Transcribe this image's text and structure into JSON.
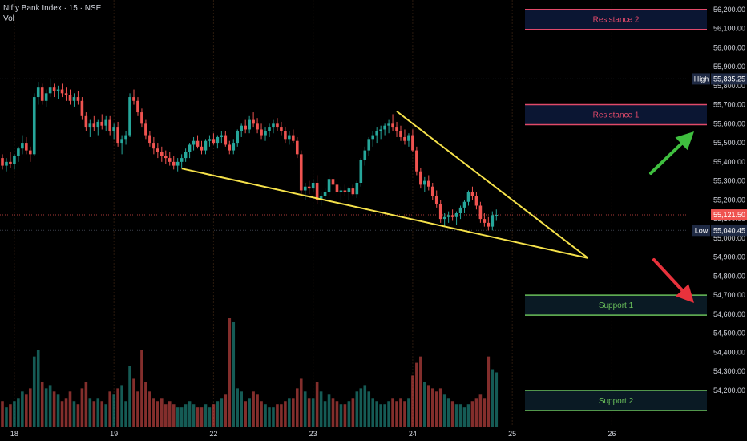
{
  "legend": {
    "symbol": "Nifty Bank Index · 15 · NSE",
    "volume_label": "Vol"
  },
  "colors": {
    "background": "#000000",
    "up": "#26a69a",
    "down": "#ef5350",
    "resistance_border": "#e04a6a",
    "resistance_fill": "#0b1633",
    "support_border": "#6abf5a",
    "support_fill": "#0a1a24",
    "trendline": "#f5e14a",
    "arrow_up": "#3fbf3f",
    "arrow_down": "#e8323c",
    "label_bg": "#1f2a44",
    "current_price_bg": "#ef5350"
  },
  "chart_data": {
    "type": "candlestick",
    "ylim": [
      54120,
      56220
    ],
    "x_ticks": [
      {
        "label": "18",
        "t": 3
      },
      {
        "label": "19",
        "t": 28
      },
      {
        "label": "22",
        "t": 53
      },
      {
        "label": "23",
        "t": 78
      },
      {
        "label": "24",
        "t": 103
      },
      {
        "label": "25",
        "t": 128
      },
      {
        "label": "26",
        "t": 153
      }
    ],
    "y_ticks": [
      54200,
      54300,
      54400,
      54500,
      54600,
      54700,
      54800,
      54900,
      55000,
      55100,
      55200,
      55300,
      55400,
      55500,
      55600,
      55700,
      55800,
      55900,
      56000,
      56100,
      56200
    ],
    "high": {
      "label": "High",
      "value": 55835.25
    },
    "low": {
      "label": "Low",
      "value": 55040.45
    },
    "current": {
      "value": 55121.5
    },
    "zones": [
      {
        "name": "Resistance 2",
        "top": 56200,
        "bottom": 56095,
        "kind": "resistance"
      },
      {
        "name": "Resistance 1",
        "top": 55700,
        "bottom": 55595,
        "kind": "resistance"
      },
      {
        "name": "Support 1",
        "top": 54700,
        "bottom": 54595,
        "kind": "support"
      },
      {
        "name": "Support 2",
        "top": 54200,
        "bottom": 54095,
        "kind": "support"
      }
    ],
    "trendlines": [
      {
        "t1": 45,
        "v1": 55365,
        "t2": 147,
        "v2": 54895
      },
      {
        "t1": 99,
        "v1": 55665,
        "t2": 147,
        "v2": 54895
      }
    ],
    "candles": [
      [
        55420,
        55440,
        55360,
        55380,
        40
      ],
      [
        55380,
        55420,
        55350,
        55400,
        30
      ],
      [
        55400,
        55450,
        55370,
        55390,
        35
      ],
      [
        55390,
        55440,
        55360,
        55430,
        40
      ],
      [
        55430,
        55480,
        55400,
        55470,
        45
      ],
      [
        55470,
        55540,
        55440,
        55500,
        55
      ],
      [
        55500,
        55530,
        55440,
        55460,
        50
      ],
      [
        55460,
        55480,
        55400,
        55440,
        60
      ],
      [
        55440,
        55760,
        55430,
        55740,
        110
      ],
      [
        55740,
        55820,
        55700,
        55790,
        120
      ],
      [
        55790,
        55810,
        55700,
        55720,
        70
      ],
      [
        55720,
        55780,
        55690,
        55760,
        60
      ],
      [
        55760,
        55835,
        55740,
        55790,
        65
      ],
      [
        55790,
        55810,
        55740,
        55770,
        55
      ],
      [
        55770,
        55800,
        55730,
        55780,
        50
      ],
      [
        55780,
        55810,
        55740,
        55760,
        40
      ],
      [
        55760,
        55790,
        55720,
        55750,
        45
      ],
      [
        55750,
        55780,
        55700,
        55720,
        55
      ],
      [
        55720,
        55760,
        55690,
        55740,
        40
      ],
      [
        55740,
        55770,
        55700,
        55720,
        35
      ],
      [
        55720,
        55740,
        55620,
        55640,
        60
      ],
      [
        55640,
        55660,
        55560,
        55580,
        70
      ],
      [
        55580,
        55620,
        55530,
        55600,
        45
      ],
      [
        55600,
        55640,
        55560,
        55580,
        40
      ],
      [
        55580,
        55620,
        55540,
        55610,
        45
      ],
      [
        55610,
        55650,
        55570,
        55590,
        40
      ],
      [
        55590,
        55640,
        55560,
        55620,
        35
      ],
      [
        55620,
        55640,
        55540,
        55560,
        55
      ],
      [
        55560,
        55600,
        55520,
        55580,
        50
      ],
      [
        55580,
        55610,
        55480,
        55500,
        60
      ],
      [
        55500,
        55540,
        55440,
        55520,
        65
      ],
      [
        55520,
        55560,
        55490,
        55540,
        40
      ],
      [
        55540,
        55760,
        55530,
        55740,
        95
      ],
      [
        55740,
        55780,
        55700,
        55720,
        75
      ],
      [
        55720,
        55740,
        55640,
        55660,
        55
      ],
      [
        55660,
        55680,
        55580,
        55600,
        120
      ],
      [
        55600,
        55620,
        55520,
        55540,
        70
      ],
      [
        55540,
        55560,
        55480,
        55500,
        55
      ],
      [
        55500,
        55530,
        55440,
        55470,
        45
      ],
      [
        55470,
        55500,
        55420,
        55450,
        40
      ],
      [
        55450,
        55480,
        55400,
        55430,
        45
      ],
      [
        55430,
        55460,
        55390,
        55420,
        35
      ],
      [
        55420,
        55450,
        55380,
        55400,
        40
      ],
      [
        55400,
        55430,
        55360,
        55380,
        35
      ],
      [
        55380,
        55420,
        55350,
        55400,
        30
      ],
      [
        55400,
        55440,
        55370,
        55420,
        30
      ],
      [
        55420,
        55470,
        55400,
        55450,
        35
      ],
      [
        55450,
        55500,
        55420,
        55490,
        40
      ],
      [
        55490,
        55530,
        55460,
        55510,
        35
      ],
      [
        55510,
        55540,
        55470,
        55480,
        30
      ],
      [
        55480,
        55510,
        55440,
        55460,
        30
      ],
      [
        55460,
        55520,
        55440,
        55510,
        35
      ],
      [
        55510,
        55540,
        55480,
        55520,
        30
      ],
      [
        55520,
        55550,
        55490,
        55500,
        35
      ],
      [
        55500,
        55540,
        55470,
        55530,
        40
      ],
      [
        55530,
        55560,
        55500,
        55540,
        45
      ],
      [
        55540,
        55560,
        55480,
        55490,
        50
      ],
      [
        55490,
        55510,
        55440,
        55460,
        170
      ],
      [
        55460,
        55520,
        55440,
        55500,
        165
      ],
      [
        55500,
        55570,
        55480,
        55560,
        60
      ],
      [
        55560,
        55600,
        55530,
        55590,
        55
      ],
      [
        55590,
        55620,
        55550,
        55570,
        40
      ],
      [
        55570,
        55640,
        55550,
        55620,
        45
      ],
      [
        55620,
        55660,
        55580,
        55600,
        55
      ],
      [
        55600,
        55630,
        55550,
        55570,
        50
      ],
      [
        55570,
        55600,
        55520,
        55540,
        40
      ],
      [
        55540,
        55580,
        55510,
        55560,
        35
      ],
      [
        55560,
        55600,
        55530,
        55580,
        30
      ],
      [
        55580,
        55620,
        55550,
        55600,
        30
      ],
      [
        55600,
        55630,
        55560,
        55580,
        35
      ],
      [
        55580,
        55610,
        55540,
        55560,
        35
      ],
      [
        55560,
        55580,
        55500,
        55520,
        40
      ],
      [
        55520,
        55560,
        55490,
        55540,
        45
      ],
      [
        55540,
        55570,
        55500,
        55510,
        45
      ],
      [
        55510,
        55530,
        55420,
        55440,
        60
      ],
      [
        55440,
        55460,
        55230,
        55250,
        75
      ],
      [
        55250,
        55290,
        55200,
        55270,
        55
      ],
      [
        55270,
        55300,
        55230,
        55260,
        45
      ],
      [
        55260,
        55310,
        55240,
        55290,
        45
      ],
      [
        55290,
        55330,
        55180,
        55200,
        70
      ],
      [
        55200,
        55240,
        55170,
        55220,
        55
      ],
      [
        55220,
        55260,
        55190,
        55240,
        40
      ],
      [
        55240,
        55330,
        55220,
        55310,
        50
      ],
      [
        55310,
        55340,
        55260,
        55280,
        45
      ],
      [
        55280,
        55310,
        55220,
        55240,
        40
      ],
      [
        55240,
        55270,
        55200,
        55250,
        35
      ],
      [
        55250,
        55280,
        55220,
        55240,
        35
      ],
      [
        55240,
        55270,
        55200,
        55260,
        40
      ],
      [
        55260,
        55280,
        55220,
        55230,
        45
      ],
      [
        55230,
        55300,
        55210,
        55290,
        55
      ],
      [
        55290,
        55420,
        55270,
        55410,
        60
      ],
      [
        55410,
        55480,
        55380,
        55460,
        65
      ],
      [
        55460,
        55530,
        55430,
        55520,
        55
      ],
      [
        55520,
        55560,
        55480,
        55540,
        45
      ],
      [
        55540,
        55580,
        55500,
        55560,
        40
      ],
      [
        55560,
        55590,
        55520,
        55570,
        35
      ],
      [
        55570,
        55600,
        55540,
        55590,
        35
      ],
      [
        55590,
        55620,
        55550,
        55600,
        40
      ],
      [
        55600,
        55650,
        55560,
        55580,
        45
      ],
      [
        55580,
        55610,
        55530,
        55560,
        40
      ],
      [
        55560,
        55590,
        55510,
        55530,
        45
      ],
      [
        55530,
        55570,
        55490,
        55510,
        40
      ],
      [
        55510,
        55550,
        55480,
        55540,
        45
      ],
      [
        55540,
        55570,
        55450,
        55460,
        80
      ],
      [
        55460,
        55480,
        55330,
        55350,
        100
      ],
      [
        55350,
        55370,
        55260,
        55280,
        110
      ],
      [
        55280,
        55320,
        55240,
        55300,
        70
      ],
      [
        55300,
        55330,
        55250,
        55270,
        65
      ],
      [
        55270,
        55290,
        55200,
        55220,
        60
      ],
      [
        55220,
        55250,
        55160,
        55180,
        55
      ],
      [
        55180,
        55200,
        55080,
        55100,
        60
      ],
      [
        55100,
        55130,
        55060,
        55110,
        50
      ],
      [
        55110,
        55140,
        55080,
        55120,
        45
      ],
      [
        55120,
        55150,
        55090,
        55110,
        40
      ],
      [
        55110,
        55140,
        55070,
        55130,
        35
      ],
      [
        55130,
        55170,
        55100,
        55160,
        35
      ],
      [
        55160,
        55200,
        55130,
        55190,
        30
      ],
      [
        55190,
        55250,
        55170,
        55240,
        35
      ],
      [
        55240,
        55270,
        55200,
        55220,
        40
      ],
      [
        55220,
        55240,
        55150,
        55170,
        45
      ],
      [
        55170,
        55190,
        55080,
        55100,
        50
      ],
      [
        55100,
        55130,
        55060,
        55080,
        45
      ],
      [
        55080,
        55110,
        55040,
        55060,
        110
      ],
      [
        55060,
        55140,
        55040,
        55120,
        90
      ],
      [
        55120,
        55150,
        55090,
        55121.5,
        85
      ]
    ]
  }
}
